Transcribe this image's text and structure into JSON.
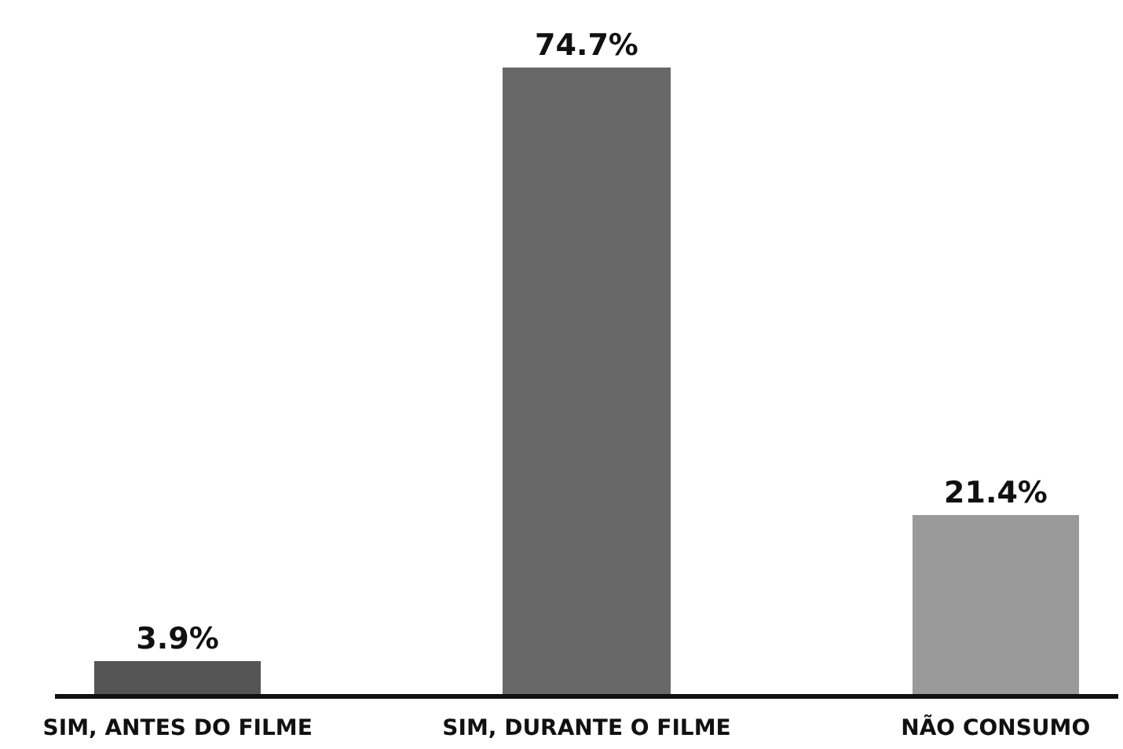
{
  "chart_data": {
    "type": "bar",
    "categories": [
      "SIM, ANTES DO FILME",
      "SIM, DURANTE O FILME",
      "NÃO CONSUMO"
    ],
    "values": [
      3.9,
      74.7,
      21.4
    ],
    "value_labels": [
      "3.9%",
      "74.7%",
      "21.4%"
    ],
    "colors": [
      "#555555",
      "#686868",
      "#9a9a9a"
    ]
  }
}
